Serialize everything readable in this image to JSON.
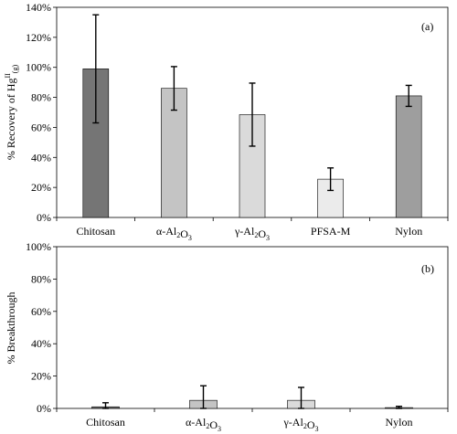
{
  "chart_data": [
    {
      "type": "bar",
      "panel_label": "(a)",
      "ylabel": "% Recovery of Hg",
      "ylabel_sup": "II",
      "ylabel_sub": "(g)",
      "ylim": [
        0,
        140
      ],
      "yticks": [
        0,
        20,
        40,
        60,
        80,
        100,
        120,
        140
      ],
      "ytick_labels": [
        "0%",
        "20%",
        "40%",
        "60%",
        "80%",
        "100%",
        "120%",
        "140%"
      ],
      "grid": false,
      "categories": [
        {
          "label": "Chitosan",
          "value": 99,
          "error": 36,
          "color": "#757575"
        },
        {
          "label": "α-Al₂O₃",
          "value": 86,
          "error": 14.5,
          "color": "#c4c4c4"
        },
        {
          "label": "γ-Al₂O₃",
          "value": 68.5,
          "error": 21,
          "color": "#dadada"
        },
        {
          "label": "PFSA-M",
          "value": 25.5,
          "error": 7.5,
          "color": "#ebebeb"
        },
        {
          "label": "Nylon",
          "value": 81,
          "error": 7,
          "color": "#9e9e9e"
        }
      ]
    },
    {
      "type": "bar",
      "panel_label": "(b)",
      "ylabel": "% Breakthrough",
      "ylim": [
        0,
        100
      ],
      "yticks": [
        0,
        20,
        40,
        60,
        80,
        100
      ],
      "ytick_labels": [
        "0%",
        "20%",
        "40%",
        "60%",
        "80%",
        "100%"
      ],
      "grid": false,
      "categories": [
        {
          "label": "Chitosan",
          "value": 1,
          "error": 2.5,
          "color": "#757575"
        },
        {
          "label": "α-Al₂O₃",
          "value": 5,
          "error": 9,
          "color": "#c4c4c4"
        },
        {
          "label": "γ-Al₂O₃",
          "value": 5,
          "error": 8,
          "color": "#dadada"
        },
        {
          "label": "Nylon",
          "value": 0.5,
          "error": 0.8,
          "color": "#9e9e9e"
        }
      ]
    }
  ]
}
